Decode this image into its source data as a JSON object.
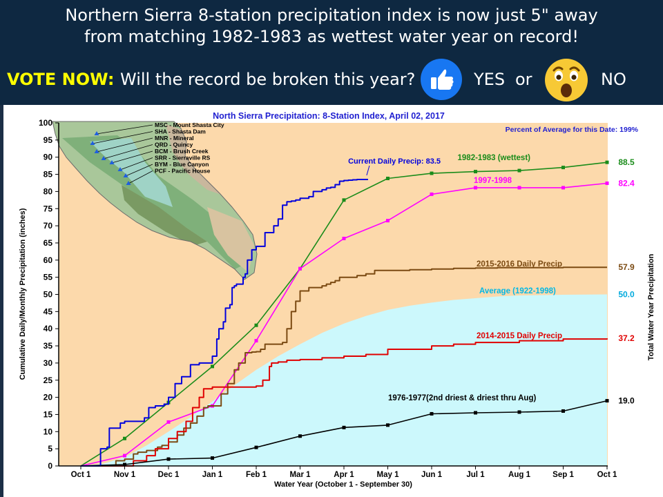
{
  "banner": {
    "headline_line1": "Northern Sierra 8-station precipitation index is now just 5\" away",
    "headline_line2": "from matching 1982-1983 as wettest water year on record!",
    "vote_label": "VOTE NOW:",
    "vote_question": "Will the record be broken this year?",
    "yes_label": "YES",
    "or_label": "or",
    "no_label": "NO",
    "yes_icon": "thumbs-up-icon",
    "no_icon": "surprised-face-icon",
    "colors": {
      "background": "#0e2841",
      "text": "#ffffff",
      "vote": "#ffff00",
      "thumb": "#1877f2",
      "face": "#f7c935"
    }
  },
  "chart_data": {
    "type": "line",
    "title": "North Sierra Precipitation: 8-Station Index, April 02, 2017",
    "subtitle": "Percent of Average for this Date: 199%",
    "xlabel": "Water Year (October 1 - September 30)",
    "ylabel": "Cumulative Daily/Monthly Precipitation (inches)",
    "y2label": "Total Water Year Precipitation",
    "categories": [
      "Oct 1",
      "Nov 1",
      "Dec 1",
      "Jan 1",
      "Feb 1",
      "Mar 1",
      "Apr 1",
      "May 1",
      "Jun 1",
      "Jul 1",
      "Aug 1",
      "Sep 1",
      "Oct 1"
    ],
    "yticks": [
      0,
      5,
      10,
      15,
      20,
      25,
      30,
      35,
      40,
      45,
      50,
      55,
      60,
      65,
      70,
      75,
      80,
      85,
      90,
      95,
      100
    ],
    "ylim": [
      0,
      100
    ],
    "grid": false,
    "map_legend": [
      "MSC - Mount Shasta City",
      "SHA - Shasta Dam",
      "MNR - Mineral",
      "QRD - Quincy",
      "BCM - Brush Creek",
      "SRR - Sierraville RS",
      "BYM - Blue Canyon",
      "PCF - Pacific House"
    ],
    "series": [
      {
        "name": "1982-1983 (wettest)",
        "color": "#1a8c1a",
        "kind": "monthly",
        "values": [
          0,
          8.0,
          18.5,
          29.0,
          41.0,
          57.5,
          77.5,
          83.8,
          85.3,
          85.8,
          86.1,
          87.0,
          88.5
        ],
        "end_label": "88.5"
      },
      {
        "name": "1997-1998",
        "color": "#ff00ff",
        "kind": "monthly",
        "values": [
          0,
          3.0,
          12.8,
          17.5,
          36.5,
          57.5,
          66.3,
          71.5,
          79.2,
          81.1,
          81.1,
          81.1,
          82.4
        ],
        "end_label": "82.4"
      },
      {
        "name": "2015-2016 Daily Precip",
        "color": "#7b4a12",
        "kind": "daily",
        "x": [
          0,
          0.75,
          0.8,
          1.0,
          1.2,
          1.3,
          1.5,
          1.75,
          1.85,
          2.0,
          2.2,
          2.35,
          2.5,
          2.65,
          2.8,
          2.9,
          3.0,
          3.2,
          3.35,
          3.5,
          3.6,
          3.75,
          3.9,
          4.0,
          4.1,
          4.2,
          4.5,
          4.6,
          4.7,
          4.8,
          4.9,
          5.0,
          5.2,
          5.3,
          5.5,
          5.6,
          5.7,
          5.8,
          5.9,
          6.0,
          6.3,
          6.5,
          6.7,
          7.0,
          7.5,
          8.0,
          8.5,
          9.0,
          9.5,
          10.0,
          11.0,
          12.0
        ],
        "values": [
          0,
          0,
          1.5,
          2,
          3.5,
          4,
          4.5,
          5.5,
          6,
          7,
          9,
          11,
          12.5,
          14.5,
          17,
          17.5,
          17.5,
          21,
          24,
          28,
          30,
          33,
          33.2,
          33.3,
          34,
          35.5,
          35.5,
          36,
          40,
          45,
          48,
          51,
          52,
          52,
          52.5,
          53,
          53.5,
          54,
          55,
          55,
          55.5,
          56,
          57,
          57,
          57.2,
          57.4,
          57.6,
          57.7,
          57.8,
          57.8,
          57.9,
          57.9
        ],
        "end_label": "57.9"
      },
      {
        "name": "2014-2015 Daily Precip",
        "color": "#e00000",
        "kind": "daily",
        "x": [
          0,
          1.0,
          1.2,
          1.5,
          1.7,
          2.0,
          2.2,
          2.4,
          2.55,
          2.7,
          2.8,
          3.0,
          3.3,
          3.6,
          3.8,
          4.0,
          4.15,
          4.3,
          4.35,
          4.5,
          4.7,
          5.0,
          5.5,
          6.0,
          6.5,
          7.0,
          7.5,
          8.0,
          8.5,
          9.0,
          10.0,
          11.0,
          12.0
        ],
        "values": [
          0,
          0,
          1.5,
          3,
          5,
          8,
          10,
          13,
          17,
          20,
          22.5,
          23,
          23,
          23,
          23,
          23.3,
          25,
          29,
          30,
          30.3,
          30.8,
          31,
          31.5,
          32,
          32.5,
          34,
          34,
          35,
          35.5,
          36,
          36.5,
          37,
          37.2
        ],
        "end_label": "37.2"
      },
      {
        "name": "1976-1977(2nd driest & driest thru Aug)",
        "color": "#000000",
        "kind": "monthly",
        "values": [
          0,
          0.4,
          2.0,
          2.3,
          5.4,
          8.7,
          11.2,
          11.9,
          15.2,
          15.5,
          15.7,
          16.0,
          19.0
        ],
        "end_label": "19.0"
      },
      {
        "name": "Average (1922-1998)",
        "color": "#00b8e6",
        "fill": "#ccf8fc",
        "kind": "area",
        "x": [
          0,
          0.5,
          1.0,
          1.5,
          2.0,
          2.5,
          3.0,
          3.5,
          4.0,
          4.5,
          5.0,
          5.5,
          6.0,
          6.5,
          7.0,
          7.5,
          8.0,
          8.5,
          9.0,
          9.5,
          10.0,
          11.0,
          12.0
        ],
        "values": [
          0,
          0.6,
          2.5,
          6.0,
          10.0,
          14.2,
          18.8,
          23.5,
          28.0,
          32.0,
          35.5,
          38.8,
          41.5,
          43.7,
          45.5,
          46.7,
          47.6,
          48.4,
          48.9,
          49.4,
          49.7,
          49.9,
          50.0
        ],
        "end_label": "50.0"
      },
      {
        "name": "Current Daily Precip: 83.5",
        "color": "#0000dd",
        "kind": "daily",
        "x": [
          0,
          0.4,
          0.45,
          0.6,
          0.65,
          0.9,
          1.0,
          1.2,
          1.3,
          1.45,
          1.55,
          1.7,
          1.8,
          1.9,
          2.0,
          2.15,
          2.3,
          2.45,
          2.5,
          2.7,
          2.8,
          3.0,
          3.1,
          3.15,
          3.25,
          3.3,
          3.4,
          3.45,
          3.5,
          3.55,
          3.6,
          3.7,
          3.75,
          3.8,
          3.9,
          4.0,
          4.1,
          4.2,
          4.3,
          4.4,
          4.5,
          4.6,
          4.7,
          4.75,
          4.8,
          4.9,
          5.0,
          5.1,
          5.2,
          5.3,
          5.4,
          5.5,
          5.6,
          5.7,
          5.8,
          5.9,
          6.0,
          6.1,
          6.2,
          6.3,
          6.4,
          6.5,
          6.55
        ],
        "values": [
          0,
          0,
          5,
          5.5,
          11,
          12.5,
          13,
          13,
          13,
          14,
          17,
          17.5,
          17.5,
          18,
          20,
          24,
          26,
          26,
          29.5,
          30,
          30,
          32,
          37,
          40,
          42,
          46,
          47,
          52,
          52.5,
          53,
          53,
          55,
          56,
          60,
          63,
          64,
          64,
          68,
          68,
          70,
          72,
          76,
          77,
          77,
          77.2,
          77.5,
          78,
          78,
          78.5,
          80,
          80,
          80.5,
          81,
          81.2,
          82,
          83,
          83.2,
          83.3,
          83.4,
          83.5,
          83.5,
          83.5,
          83.5
        ],
        "end_label": "Current Daily Precip: 83.5"
      }
    ]
  }
}
